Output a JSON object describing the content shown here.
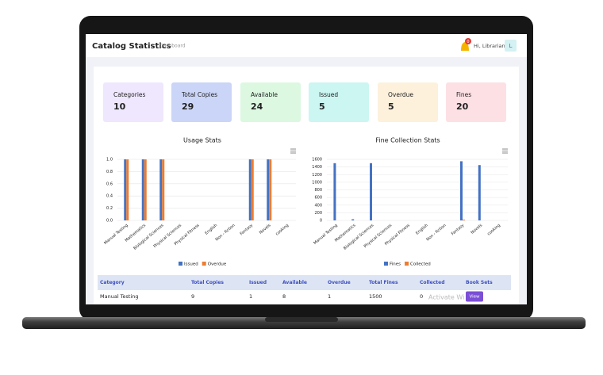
{
  "header": {
    "title": "Catalog Statistics",
    "breadcrumb": "Dashboard",
    "badge": "0",
    "greeting": "Hi, Librarian",
    "avatar": "L"
  },
  "stats": [
    {
      "label": "Categories",
      "value": 10,
      "color": "#efe7fd"
    },
    {
      "label": "Total Copies",
      "value": 29,
      "color": "#cbd5f7"
    },
    {
      "label": "Available",
      "value": 24,
      "color": "#dcf8e1"
    },
    {
      "label": "Issued",
      "value": 5,
      "color": "#cbf6f2"
    },
    {
      "label": "Overdue",
      "value": 5,
      "color": "#fdf1dc"
    },
    {
      "label": "Fines",
      "value": 20,
      "color": "#fde0e4"
    }
  ],
  "charts": [
    {
      "type": "bar",
      "title": "Usage Stats",
      "categories": [
        "Manual Testing",
        "Mathematics",
        "Biological Sciences",
        "Physical Sciences",
        "Physical Fitness",
        "English",
        "Non - fiction",
        "Fantasy",
        "Novels",
        "cooking"
      ],
      "series": [
        {
          "name": "Issued",
          "color": "#4472c4",
          "values": [
            1,
            1,
            1,
            0,
            0,
            0,
            0,
            1,
            1,
            0
          ]
        },
        {
          "name": "Overdue",
          "color": "#ed7d31",
          "values": [
            1,
            1,
            1,
            0,
            0,
            0,
            0,
            1,
            1,
            0
          ]
        }
      ],
      "ylim": [
        0,
        1
      ],
      "yticks": [
        {
          "value": 0,
          "label": "0.0"
        },
        {
          "value": 0.2,
          "label": "0.2"
        },
        {
          "value": 0.4,
          "label": "0.4"
        },
        {
          "value": 0.6,
          "label": "0.6"
        },
        {
          "value": 0.8,
          "label": "0.8"
        },
        {
          "value": 1,
          "label": "1.0"
        }
      ],
      "grid": true
    },
    {
      "type": "bar",
      "title": "Fine Collection Stats",
      "categories": [
        "Manual Testing",
        "Mathematics",
        "Biological Sciences",
        "Physical Sciences",
        "Physical Fitness",
        "English",
        "Non - fiction",
        "Fantasy",
        "Novels",
        "cooking"
      ],
      "series": [
        {
          "name": "Fines",
          "color": "#4472c4",
          "values": [
            1500,
            30,
            1500,
            0,
            0,
            0,
            0,
            1550,
            1450,
            0
          ]
        },
        {
          "name": "Collected",
          "color": "#ed7d31",
          "values": [
            0,
            0,
            0,
            0,
            0,
            0,
            0,
            20,
            0,
            0
          ]
        }
      ],
      "ylim": [
        0,
        1600
      ],
      "yticks": [
        0,
        200,
        400,
        600,
        800,
        1000,
        1200,
        1400,
        1600
      ],
      "grid": true
    }
  ],
  "table": {
    "columns": [
      "Category",
      "Total Copies",
      "Issued",
      "Available",
      "Overdue",
      "Total Fines",
      "Collected",
      "Book Sets"
    ],
    "rows": [
      [
        "Manual Testing",
        9,
        1,
        8,
        1,
        1500,
        0,
        "View"
      ]
    ]
  },
  "watermark": "Activate Wi"
}
